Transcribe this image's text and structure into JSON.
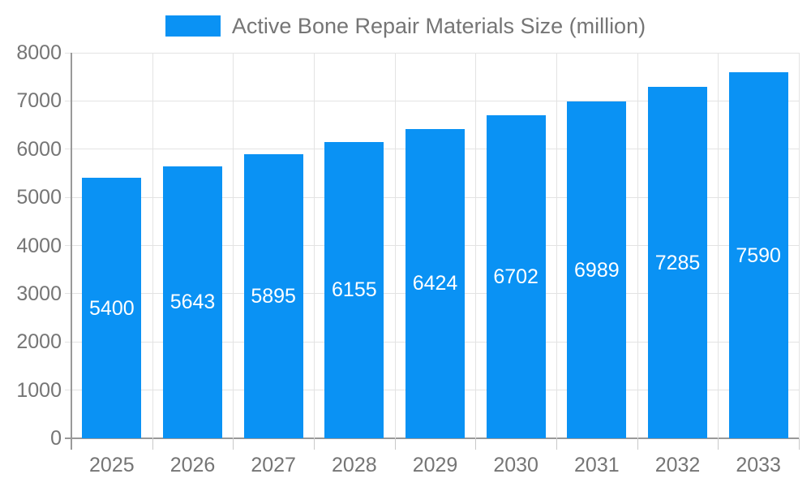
{
  "chart_data": {
    "type": "bar",
    "title": "Active Bone Repair Materials Size (million)",
    "legend_position": "top",
    "categories": [
      "2025",
      "2026",
      "2027",
      "2028",
      "2029",
      "2030",
      "2031",
      "2032",
      "2033"
    ],
    "series": [
      {
        "name": "Active Bone Repair Materials Size (million)",
        "values": [
          5400,
          5643,
          5895,
          6155,
          6424,
          6702,
          6989,
          7285,
          7590
        ]
      }
    ],
    "xlabel": "",
    "ylabel": "",
    "ylim": [
      0,
      8000
    ],
    "yticks": [
      0,
      1000,
      2000,
      3000,
      4000,
      5000,
      6000,
      7000,
      8000
    ],
    "grid": true,
    "bar_labels_inside": true,
    "colors": {
      "bar": "#0a92f4",
      "grid": "#e3e3e3",
      "tick": "#c9c9c9",
      "axis": "#999999",
      "text": "#757575",
      "bar_label": "#ffffff",
      "background": "#ffffff"
    }
  }
}
